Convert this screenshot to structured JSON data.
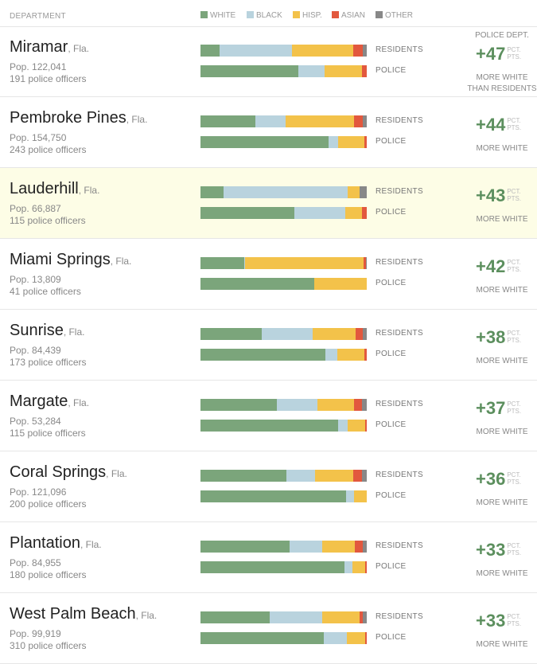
{
  "header": {
    "department": "DEPARTMENT",
    "legend": [
      {
        "label": "WHITE",
        "color": "#7ba57b"
      },
      {
        "label": "BLACK",
        "color": "#b9d3de"
      },
      {
        "label": "HISP.",
        "color": "#f3c24a"
      },
      {
        "label": "ASIAN",
        "color": "#e2583e"
      },
      {
        "label": "OTHER",
        "color": "#888888"
      }
    ]
  },
  "labels": {
    "residents": "RESIDENTS",
    "police": "POLICE",
    "diff_head": "POLICE DEPT.",
    "pct": "PCT.",
    "pts": "PTS.",
    "first_caption_line1": "MORE WHITE",
    "first_caption_line2": "THAN RESIDENTS",
    "caption": "MORE WHITE"
  },
  "chart_data": {
    "type": "bar",
    "stacked": true,
    "segment_order": [
      "WHITE",
      "BLACK",
      "HISP.",
      "ASIAN",
      "OTHER"
    ],
    "departments": [
      {
        "name": "Miramar",
        "state": ", Fla.",
        "pop": "Pop. 122,041",
        "officers": "191 police officers",
        "diff": "+47",
        "highlight": false,
        "residents": [
          11.5,
          43.5,
          37,
          5.5,
          2.5
        ],
        "police": [
          59,
          15.5,
          22.5,
          3,
          0
        ]
      },
      {
        "name": "Pembroke Pines",
        "state": ", Fla.",
        "pop": "Pop. 154,750",
        "officers": "243 police officers",
        "diff": "+44",
        "highlight": false,
        "residents": [
          33,
          18,
          41.5,
          5,
          2.5
        ],
        "police": [
          77,
          6,
          15.5,
          1.5,
          0
        ]
      },
      {
        "name": "Lauderhill",
        "state": ", Fla.",
        "pop": "Pop. 66,887",
        "officers": "115 police officers",
        "diff": "+43",
        "highlight": true,
        "residents": [
          14,
          74.5,
          7,
          0,
          4.5
        ],
        "police": [
          56.5,
          30.5,
          10,
          3,
          0
        ]
      },
      {
        "name": "Miami Springs",
        "state": ", Fla.",
        "pop": "Pop. 13,809",
        "officers": "41 police officers",
        "diff": "+42",
        "highlight": false,
        "residents": [
          26.5,
          0.5,
          71,
          1.5,
          0.5
        ],
        "police": [
          68.5,
          0,
          31.5,
          0,
          0
        ]
      },
      {
        "name": "Sunrise",
        "state": ", Fla.",
        "pop": "Pop. 84,439",
        "officers": "173 police officers",
        "diff": "+38",
        "highlight": false,
        "residents": [
          37,
          30.5,
          26,
          4,
          2.5
        ],
        "police": [
          75,
          7.5,
          16,
          1.5,
          0
        ]
      },
      {
        "name": "Margate",
        "state": ", Fla.",
        "pop": "Pop. 53,284",
        "officers": "115 police officers",
        "diff": "+37",
        "highlight": false,
        "residents": [
          46,
          24.5,
          22,
          4.5,
          3
        ],
        "police": [
          83,
          5.5,
          10.5,
          1,
          0
        ]
      },
      {
        "name": "Coral Springs",
        "state": ", Fla.",
        "pop": "Pop. 121,096",
        "officers": "200 police officers",
        "diff": "+36",
        "highlight": false,
        "residents": [
          51.5,
          17.5,
          23,
          5,
          3
        ],
        "police": [
          87.5,
          5,
          7.5,
          0,
          0
        ]
      },
      {
        "name": "Plantation",
        "state": ", Fla.",
        "pop": "Pop. 84,955",
        "officers": "180 police officers",
        "diff": "+33",
        "highlight": false,
        "residents": [
          53.5,
          19.5,
          20,
          4.5,
          2.5
        ],
        "police": [
          86.5,
          5,
          7.5,
          1,
          0
        ]
      },
      {
        "name": "West Palm Beach",
        "state": ", Fla.",
        "pop": "Pop. 99,919",
        "officers": "310 police officers",
        "diff": "+33",
        "highlight": false,
        "residents": [
          41.5,
          31.5,
          22.5,
          2,
          2.5
        ],
        "police": [
          74,
          14,
          11,
          1,
          0
        ]
      }
    ]
  }
}
